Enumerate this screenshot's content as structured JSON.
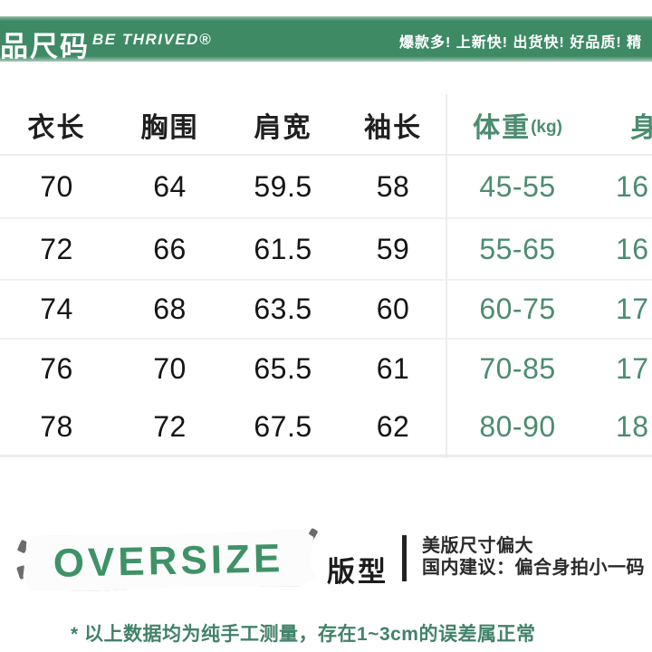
{
  "header": {
    "brand_cn": "品尺码",
    "brand_en": "BE THRIVED®",
    "slogan": "爆款多! 上新快! 出货快! 好品质! 精"
  },
  "table": {
    "headers": {
      "col1": "衣长",
      "col2": "胸围",
      "col3": "肩宽",
      "col4": "袖长",
      "col5": "体重",
      "col5_unit": "(kg)",
      "col6": "身"
    },
    "rows": [
      [
        "70",
        "64",
        "59.5",
        "58",
        "45-55",
        "16"
      ],
      [
        "72",
        "66",
        "61.5",
        "59",
        "55-65",
        "16"
      ],
      [
        "74",
        "68",
        "63.5",
        "60",
        "60-75",
        "17"
      ],
      [
        "76",
        "70",
        "65.5",
        "61",
        "70-85",
        "17"
      ],
      [
        "78",
        "72",
        "67.5",
        "62",
        "80-90",
        "18"
      ]
    ]
  },
  "fit": {
    "badge": "OVERSIZE",
    "label": "版型",
    "note_line1": "美版尺寸偏大",
    "note_line2": "国内建议：偏合身拍小一码"
  },
  "footnote": "* 以上数据均为纯手工测量，存在1~3cm的误差属正常",
  "colors": {
    "banner_green": "#3E8A64",
    "table_green": "#4C8C70",
    "badge_green": "#3F9267",
    "footnote_green": "#41826A"
  }
}
